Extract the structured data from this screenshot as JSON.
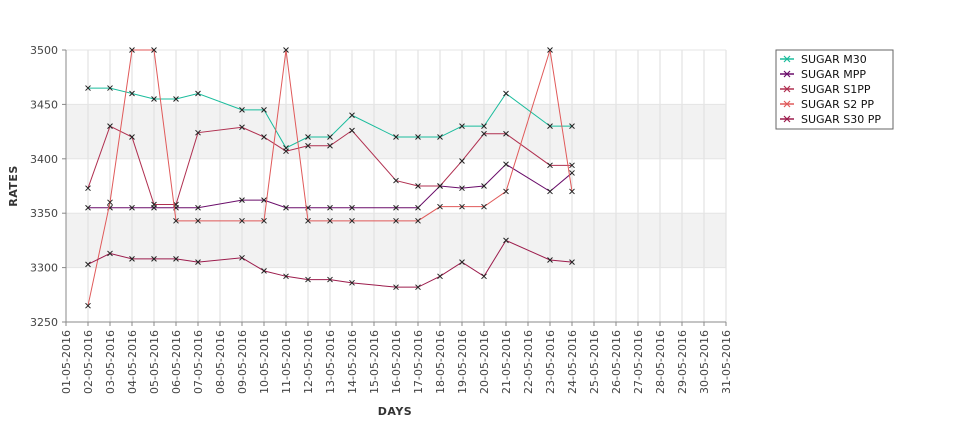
{
  "chart_data": {
    "type": "line",
    "title": "",
    "xlabel": "DAYS",
    "ylabel": "RATES",
    "ylim": [
      3250,
      3500
    ],
    "yticks": [
      3250,
      3300,
      3350,
      3400,
      3450,
      3500
    ],
    "x_ticks": [
      "01-05-2016",
      "02-05-2016",
      "03-05-2016",
      "04-05-2016",
      "05-05-2016",
      "06-05-2016",
      "07-05-2016",
      "08-05-2016",
      "09-05-2016",
      "10-05-2016",
      "11-05-2016",
      "12-05-2016",
      "13-05-2016",
      "14-05-2016",
      "15-05-2016",
      "16-05-2016",
      "17-05-2016",
      "18-05-2016",
      "19-05-2016",
      "20-05-2016",
      "21-05-2016",
      "22-05-2016",
      "23-05-2016",
      "24-05-2016",
      "25-05-2016",
      "26-05-2016",
      "27-05-2016",
      "28-05-2016",
      "29-05-2016",
      "30-05-2016",
      "31-05-2016"
    ],
    "grid": true,
    "legend_position": "top-right",
    "series": [
      {
        "name": "SUGAR M30",
        "color": "#1abc9c",
        "x": [
          "02-05-2016",
          "03-05-2016",
          "04-05-2016",
          "05-05-2016",
          "06-05-2016",
          "07-05-2016",
          "09-05-2016",
          "10-05-2016",
          "11-05-2016",
          "12-05-2016",
          "13-05-2016",
          "14-05-2016",
          "16-05-2016",
          "17-05-2016",
          "18-05-2016",
          "19-05-2016",
          "20-05-2016",
          "21-05-2016",
          "23-05-2016",
          "24-05-2016"
        ],
        "y": [
          3465,
          3465,
          3460,
          3455,
          3455,
          3460,
          3445,
          3445,
          3410,
          3420,
          3420,
          3440,
          3420,
          3420,
          3420,
          3430,
          3430,
          3460,
          3430,
          3430
        ]
      },
      {
        "name": "SUGAR MPP",
        "color": "#6a0d6a",
        "x": [
          "02-05-2016",
          "03-05-2016",
          "04-05-2016",
          "05-05-2016",
          "06-05-2016",
          "07-05-2016",
          "09-05-2016",
          "10-05-2016",
          "11-05-2016",
          "12-05-2016",
          "13-05-2016",
          "14-05-2016",
          "16-05-2016",
          "17-05-2016",
          "18-05-2016",
          "19-05-2016",
          "20-05-2016",
          "21-05-2016",
          "23-05-2016",
          "24-05-2016"
        ],
        "y": [
          3355,
          3355,
          3355,
          3355,
          3355,
          3355,
          3362,
          3362,
          3355,
          3355,
          3355,
          3355,
          3355,
          3355,
          3375,
          3373,
          3375,
          3395,
          3370,
          3387
        ]
      },
      {
        "name": "SUGAR S1PP",
        "color": "#b03050",
        "x": [
          "02-05-2016",
          "03-05-2016",
          "04-05-2016",
          "05-05-2016",
          "06-05-2016",
          "07-05-2016",
          "09-05-2016",
          "10-05-2016",
          "11-05-2016",
          "12-05-2016",
          "13-05-2016",
          "14-05-2016",
          "16-05-2016",
          "17-05-2016",
          "18-05-2016",
          "19-05-2016",
          "20-05-2016",
          "21-05-2016",
          "23-05-2016",
          "24-05-2016"
        ],
        "y": [
          3373,
          3430,
          3420,
          3358,
          3358,
          3424,
          3429,
          3420,
          3407,
          3412,
          3412,
          3426,
          3380,
          3375,
          3375,
          3398,
          3423,
          3423,
          3394,
          3394
        ]
      },
      {
        "name": "SUGAR S2 PP",
        "color": "#e05a5a",
        "x": [
          "02-05-2016",
          "03-05-2016",
          "04-05-2016",
          "05-05-2016",
          "06-05-2016",
          "07-05-2016",
          "09-05-2016",
          "10-05-2016",
          "11-05-2016",
          "12-05-2016",
          "13-05-2016",
          "14-05-2016",
          "16-05-2016",
          "17-05-2016",
          "18-05-2016",
          "19-05-2016",
          "20-05-2016",
          "21-05-2016",
          "23-05-2016",
          "24-05-2016"
        ],
        "y": [
          3265,
          3360,
          3500,
          3500,
          3343,
          3343,
          3343,
          3343,
          3500,
          3343,
          3343,
          3343,
          3343,
          3343,
          3356,
          3356,
          3356,
          3370,
          3500,
          3370
        ]
      },
      {
        "name": "SUGAR S30 PP",
        "color": "#9c1c4c",
        "x": [
          "02-05-2016",
          "03-05-2016",
          "04-05-2016",
          "05-05-2016",
          "06-05-2016",
          "07-05-2016",
          "09-05-2016",
          "10-05-2016",
          "11-05-2016",
          "12-05-2016",
          "13-05-2016",
          "14-05-2016",
          "16-05-2016",
          "17-05-2016",
          "18-05-2016",
          "19-05-2016",
          "20-05-2016",
          "21-05-2016",
          "23-05-2016",
          "24-05-2016"
        ],
        "y": [
          3303,
          3313,
          3308,
          3308,
          3308,
          3305,
          3309,
          3297,
          3292,
          3289,
          3289,
          3286,
          3282,
          3282,
          3292,
          3305,
          3292,
          3325,
          3307,
          3305
        ]
      }
    ]
  }
}
